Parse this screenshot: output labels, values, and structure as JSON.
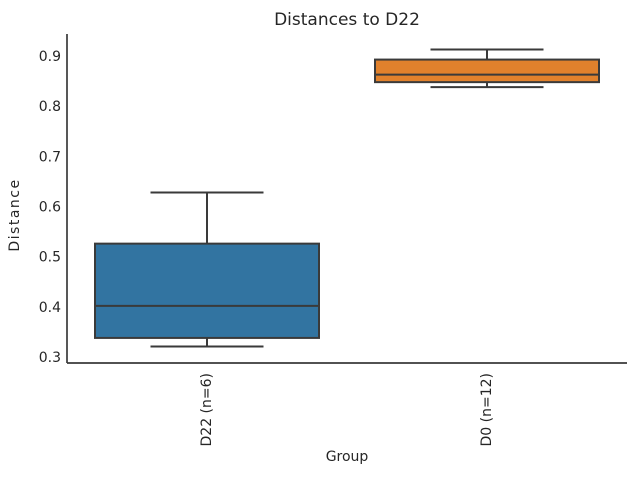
{
  "chart_data": {
    "type": "boxplot",
    "title": "Distances to D22",
    "xlabel": "Group",
    "ylabel": "Distance",
    "ylim": [
      0.29,
      0.946
    ],
    "yticks": [
      0.3,
      0.4,
      0.5,
      0.6,
      0.7,
      0.8,
      0.9
    ],
    "ytick_labels": [
      "0.3",
      "0.4",
      "0.5",
      "0.6",
      "0.7",
      "0.8",
      "0.9"
    ],
    "grid": "off",
    "legend": "none",
    "groups": [
      {
        "label": "D22 (n=6)",
        "n": 6,
        "color": "#3274a1",
        "whisker_low": 0.323,
        "q1": 0.34,
        "median": 0.404,
        "q3": 0.528,
        "whisker_high": 0.63,
        "outliers": []
      },
      {
        "label": "D0 (n=12)",
        "n": 12,
        "color": "#e1812c",
        "whisker_low": 0.84,
        "q1": 0.85,
        "median": 0.865,
        "q3": 0.895,
        "whisker_high": 0.915,
        "outliers": []
      }
    ],
    "colors": {
      "edge": "#3a3a3a",
      "text": "#262626",
      "background": "#ffffff"
    }
  }
}
